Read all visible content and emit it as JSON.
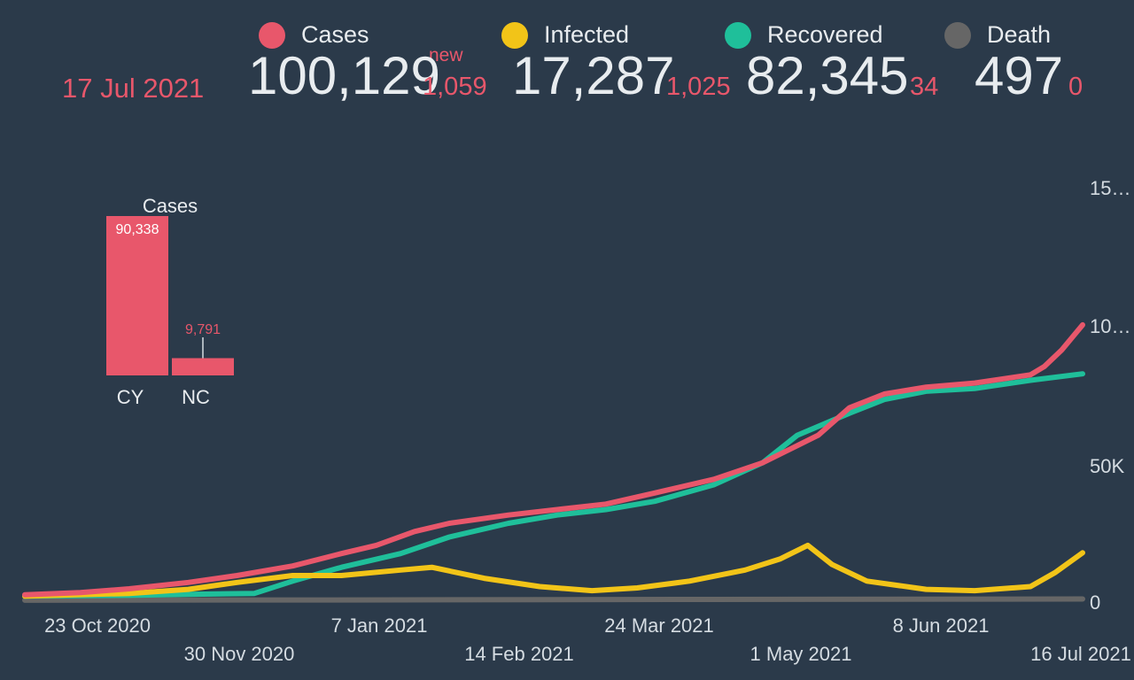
{
  "header": {
    "date": "17 Jul 2021",
    "new_label": "new",
    "stats": [
      {
        "label": "Cases",
        "value": "100,129",
        "delta": "1,059",
        "color": "#e8576b"
      },
      {
        "label": "Infected",
        "value": "17,287",
        "delta": "1,025",
        "color": "#f2c418"
      },
      {
        "label": "Recovered",
        "value": "82,345",
        "delta": "34",
        "color": "#1fbf9a"
      },
      {
        "label": "Death",
        "value": "497",
        "delta": "0",
        "color": "#666666"
      }
    ]
  },
  "chart_data": [
    {
      "type": "line",
      "x_axis": "date",
      "x_ticks": [
        "23 Oct 2020",
        "30 Nov 2020",
        "7 Jan 2021",
        "14 Feb 2021",
        "24 Mar 2021",
        "1 May 2021",
        "8 Jun 2021",
        "16 Jul 2021"
      ],
      "y_ticks": [
        "0",
        "50K",
        "10…",
        "15…"
      ],
      "ylim": [
        0,
        150000
      ],
      "grid": false,
      "series": [
        {
          "name": "Cases",
          "color": "#e8576b",
          "points": [
            [
              "2020-09-15",
              2000
            ],
            [
              "2020-10-01",
              2800
            ],
            [
              "2020-10-15",
              4200
            ],
            [
              "2020-11-01",
              6500
            ],
            [
              "2020-11-15",
              9000
            ],
            [
              "2020-12-01",
              12500
            ],
            [
              "2020-12-15",
              17000
            ],
            [
              "2020-12-25",
              20000
            ],
            [
              "2021-01-05",
              25000
            ],
            [
              "2021-01-15",
              28000
            ],
            [
              "2021-02-01",
              31000
            ],
            [
              "2021-02-15",
              33000
            ],
            [
              "2021-03-01",
              35000
            ],
            [
              "2021-03-15",
              39000
            ],
            [
              "2021-04-01",
              44000
            ],
            [
              "2021-04-15",
              50000
            ],
            [
              "2021-05-01",
              60000
            ],
            [
              "2021-05-10",
              70000
            ],
            [
              "2021-05-20",
              75000
            ],
            [
              "2021-06-01",
              77500
            ],
            [
              "2021-06-15",
              79000
            ],
            [
              "2021-07-01",
              82000
            ],
            [
              "2021-07-05",
              85000
            ],
            [
              "2021-07-10",
              91000
            ],
            [
              "2021-07-16",
              100129
            ]
          ]
        },
        {
          "name": "Recovered",
          "color": "#1fbf9a",
          "points": [
            [
              "2020-09-15",
              1500
            ],
            [
              "2020-10-15",
              1800
            ],
            [
              "2020-11-01",
              2200
            ],
            [
              "2020-11-20",
              2500
            ],
            [
              "2020-12-01",
              7000
            ],
            [
              "2020-12-15",
              12000
            ],
            [
              "2021-01-01",
              17000
            ],
            [
              "2021-01-15",
              23000
            ],
            [
              "2021-02-01",
              28000
            ],
            [
              "2021-02-15",
              31000
            ],
            [
              "2021-03-01",
              33000
            ],
            [
              "2021-03-15",
              36000
            ],
            [
              "2021-04-01",
              42000
            ],
            [
              "2021-04-15",
              50000
            ],
            [
              "2021-04-25",
              60000
            ],
            [
              "2021-05-10",
              68000
            ],
            [
              "2021-05-20",
              73000
            ],
            [
              "2021-06-01",
              76000
            ],
            [
              "2021-06-15",
              77000
            ],
            [
              "2021-07-01",
              80000
            ],
            [
              "2021-07-16",
              82345
            ]
          ]
        },
        {
          "name": "Infected",
          "color": "#f2c418",
          "points": [
            [
              "2020-09-15",
              1500
            ],
            [
              "2020-10-15",
              2500
            ],
            [
              "2020-11-01",
              4000
            ],
            [
              "2020-11-15",
              6500
            ],
            [
              "2020-12-01",
              9000
            ],
            [
              "2020-12-15",
              9000
            ],
            [
              "2021-01-01",
              11000
            ],
            [
              "2021-01-10",
              12000
            ],
            [
              "2021-01-25",
              8000
            ],
            [
              "2021-02-10",
              5000
            ],
            [
              "2021-02-25",
              3500
            ],
            [
              "2021-03-10",
              4500
            ],
            [
              "2021-03-25",
              7000
            ],
            [
              "2021-04-10",
              11000
            ],
            [
              "2021-04-20",
              15000
            ],
            [
              "2021-04-28",
              20000
            ],
            [
              "2021-05-05",
              13000
            ],
            [
              "2021-05-15",
              7000
            ],
            [
              "2021-06-01",
              4000
            ],
            [
              "2021-06-15",
              3500
            ],
            [
              "2021-07-01",
              5000
            ],
            [
              "2021-07-08",
              10000
            ],
            [
              "2021-07-16",
              17287
            ]
          ]
        },
        {
          "name": "Death",
          "color": "#666666",
          "points": [
            [
              "2020-09-15",
              40
            ],
            [
              "2021-01-01",
              150
            ],
            [
              "2021-04-01",
              320
            ],
            [
              "2021-07-16",
              497
            ]
          ]
        }
      ]
    },
    {
      "type": "bar",
      "title": "Cases",
      "categories": [
        "CY",
        "NC"
      ],
      "values": [
        90338,
        9791
      ],
      "data_labels": [
        "90,338",
        "9,791"
      ],
      "color": "#e8576b"
    }
  ]
}
